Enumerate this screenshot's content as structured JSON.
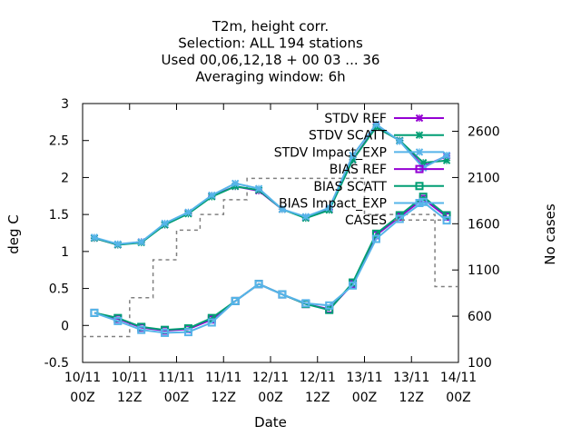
{
  "chart_data": {
    "type": "line",
    "title_lines": [
      "T2m, height corr.",
      "Selection: ALL    194 stations",
      "Used  00,06,12,18 + 00 03 ... 36",
      "Averaging window:  6h"
    ],
    "xlabel": "Date",
    "ylabel": "deg C",
    "y2label": "No cases",
    "ylim": [
      -0.5,
      3
    ],
    "y2lim": [
      100,
      2900
    ],
    "xlim": [
      0,
      96
    ],
    "yticks": [
      "-0.5",
      "0",
      "0.5",
      "1",
      "1.5",
      "2",
      "2.5",
      "3"
    ],
    "y2ticks": [
      "100",
      "600",
      "1100",
      "1600",
      "2100",
      "2600"
    ],
    "xticks": [
      {
        "x": 0,
        "top": "10/11",
        "bottom": "00Z"
      },
      {
        "x": 12,
        "top": "10/11",
        "bottom": "12Z"
      },
      {
        "x": 24,
        "top": "11/11",
        "bottom": "00Z"
      },
      {
        "x": 36,
        "top": "11/11",
        "bottom": "12Z"
      },
      {
        "x": 48,
        "top": "12/11",
        "bottom": "00Z"
      },
      {
        "x": 60,
        "top": "12/11",
        "bottom": "12Z"
      },
      {
        "x": 72,
        "top": "13/11",
        "bottom": "00Z"
      },
      {
        "x": 84,
        "top": "13/11",
        "bottom": "12Z"
      },
      {
        "x": 96,
        "top": "14/11",
        "bottom": "00Z"
      }
    ],
    "legend_position": "top-right",
    "x": [
      3,
      9,
      15,
      21,
      27,
      33,
      39,
      45,
      51,
      57,
      63,
      69,
      75,
      81,
      87,
      93
    ],
    "series": [
      {
        "name": "STDV REF",
        "axis": "y1",
        "color": "#9400d3",
        "marker": "x",
        "dash": "",
        "values": [
          1.18,
          1.09,
          1.13,
          1.36,
          1.52,
          1.75,
          1.88,
          1.82,
          1.57,
          1.46,
          1.57,
          2.24,
          2.69,
          2.5,
          2.15,
          2.29
        ]
      },
      {
        "name": "STDV SCATT",
        "axis": "y1",
        "color": "#009e73",
        "marker": "x",
        "dash": "",
        "values": [
          1.18,
          1.09,
          1.12,
          1.36,
          1.51,
          1.74,
          1.88,
          1.83,
          1.57,
          1.45,
          1.56,
          2.24,
          2.68,
          2.5,
          2.2,
          2.23
        ]
      },
      {
        "name": "STDV Impact_EXP",
        "axis": "y1",
        "color": "#56b4e9",
        "marker": "x",
        "dash": "",
        "values": [
          1.19,
          1.1,
          1.13,
          1.38,
          1.53,
          1.76,
          1.92,
          1.85,
          1.57,
          1.47,
          1.59,
          2.3,
          2.72,
          2.49,
          2.13,
          2.3
        ]
      },
      {
        "name": "BIAS REF",
        "axis": "y1",
        "color": "#9400d3",
        "marker": "s",
        "dash": "",
        "values": [
          0.17,
          0.09,
          -0.03,
          -0.07,
          -0.05,
          0.08,
          0.33,
          0.56,
          0.42,
          0.29,
          0.22,
          0.56,
          1.22,
          1.47,
          1.71,
          1.47
        ]
      },
      {
        "name": "BIAS SCATT",
        "axis": "y1",
        "color": "#009e73",
        "marker": "s",
        "dash": "",
        "values": [
          0.17,
          0.1,
          -0.02,
          -0.06,
          -0.04,
          0.1,
          0.33,
          0.56,
          0.42,
          0.29,
          0.21,
          0.58,
          1.24,
          1.49,
          1.74,
          1.49
        ]
      },
      {
        "name": "BIAS Impact_EXP",
        "axis": "y1",
        "color": "#56b4e9",
        "marker": "s",
        "dash": "",
        "values": [
          0.17,
          0.06,
          -0.06,
          -0.1,
          -0.09,
          0.04,
          0.33,
          0.56,
          0.42,
          0.3,
          0.27,
          0.54,
          1.17,
          1.44,
          1.67,
          1.42
        ]
      },
      {
        "name": "CASES",
        "axis": "y2",
        "color": "#808080",
        "marker": "",
        "dash": "4,4",
        "values": [
          380,
          380,
          800,
          1210,
          1530,
          1700,
          1860,
          2090,
          2090,
          2090,
          2090,
          2090,
          1700,
          1700,
          1700,
          920
        ]
      }
    ]
  }
}
